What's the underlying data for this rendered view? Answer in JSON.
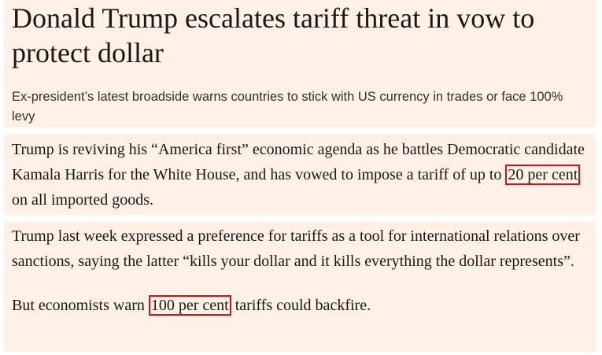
{
  "header": {
    "title": "Donald Trump escalates tariff threat in vow to protect dollar",
    "subtitle": "Ex-president’s latest broadside warns countries to stick with US currency in trades or face 100% levy"
  },
  "paragraphs": [
    {
      "before": "Trump is reviving his “America first” economic agenda as he battles Democratic candidate Kamala Harris for the White House, and has vowed to impose a tariff of up to",
      "highlight": "20 per cent",
      "after": "on all imported goods."
    },
    {
      "text": "Trump last week expressed a preference for tariffs as a tool for international relations over sanctions, saying the latter “kills your dollar and it kills everything the dollar represents”."
    },
    {
      "before": "But economists warn",
      "highlight": "100 per cent",
      "after": "tariffs could backfire."
    }
  ]
}
